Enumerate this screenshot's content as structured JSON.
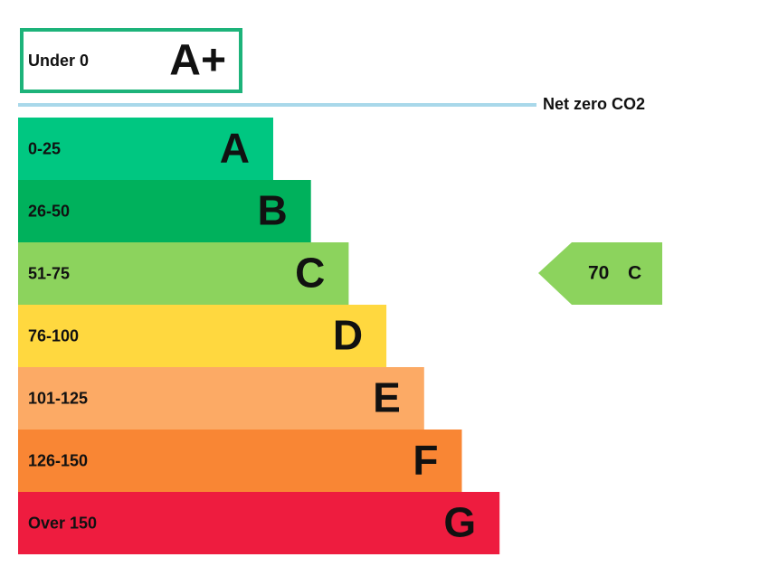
{
  "top_rating": {
    "range": "Under 0",
    "letter": "A+",
    "color": "#1db37a"
  },
  "net_zero_label": "Net zero CO2",
  "bands": [
    {
      "range": "0-25",
      "letter": "A",
      "color": "#00c781"
    },
    {
      "range": "26-50",
      "letter": "B",
      "color": "#00b15c"
    },
    {
      "range": "51-75",
      "letter": "C",
      "color": "#8cd35d"
    },
    {
      "range": "76-100",
      "letter": "D",
      "color": "#ffd83f"
    },
    {
      "range": "101-125",
      "letter": "E",
      "color": "#fcaa65"
    },
    {
      "range": "126-150",
      "letter": "F",
      "color": "#f98634"
    },
    {
      "range": "Over 150",
      "letter": "G",
      "color": "#ee1c3f"
    }
  ],
  "current": {
    "value": 70,
    "letter": "C",
    "color": "#8cd35d"
  }
}
